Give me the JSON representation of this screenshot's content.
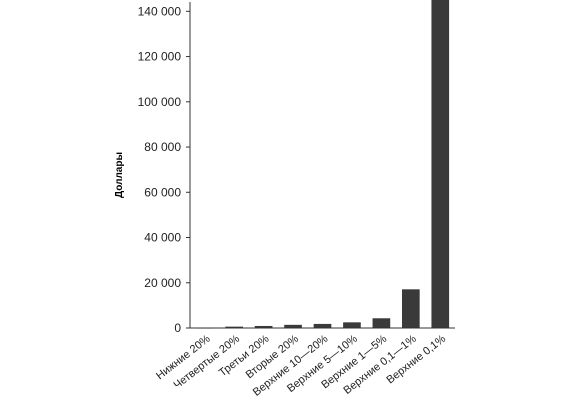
{
  "chart_data": {
    "type": "bar",
    "title": "",
    "xlabel": "",
    "ylabel": "Доллары",
    "ylim": [
      0,
      145000
    ],
    "yticks": [
      0,
      20000,
      40000,
      60000,
      80000,
      100000,
      120000,
      140000
    ],
    "ytick_labels": [
      "0",
      "20 000",
      "40 000",
      "60 000",
      "80 000",
      "100 000",
      "120 000",
      "140 000"
    ],
    "categories": [
      "Нижние 20%",
      "Четвертые 20%",
      "Третьи 20%",
      "Вторые 20%",
      "Верхние 10—20%",
      "Верхние 5—10%",
      "Верхние 1—5%",
      "Верхние 0,1—1%",
      "Верхние 0,1%"
    ],
    "values": [
      200,
      600,
      900,
      1400,
      1800,
      2500,
      4300,
      17100,
      145000
    ],
    "grid": false,
    "colors": {
      "bar": "#3a3a3a",
      "axis": "#333333",
      "text": "#222222"
    }
  }
}
